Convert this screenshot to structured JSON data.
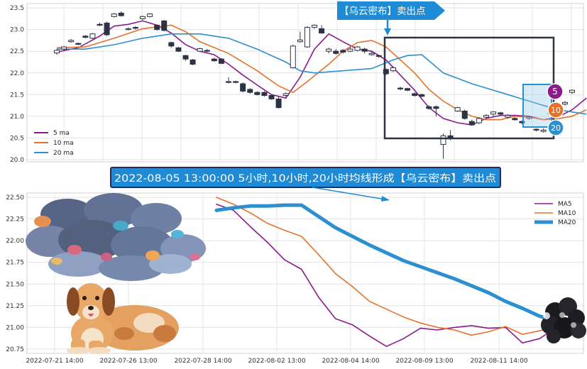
{
  "colors": {
    "ma5": "#8b1a8b",
    "ma10": "#e5722a",
    "ma20": "#2b8fd0",
    "candle": "#2c3344",
    "box": "#2c3344",
    "callout_bg": "#1f8ad6",
    "callout_border": "#1b2f66"
  },
  "callouts": {
    "top": "【乌云密布】卖出点",
    "middle": "2022-08-05 13:00:00 5小时,10小时,20小时均线形成【乌云密布】卖出点"
  },
  "badges": {
    "b5": "5",
    "b10": "10",
    "b20": "20"
  },
  "illustrations": [
    "cloud",
    "dog",
    "dark-cloud"
  ],
  "chart_data": [
    {
      "type": "candlestick",
      "ylim": [
        19.95,
        23.6
      ],
      "yticks": [
        "20.0",
        "20.5",
        "21.0",
        "21.5",
        "22.0",
        "22.5",
        "23.0",
        "23.5"
      ],
      "legend": {
        "position": "bottom-left",
        "entries": [
          "5 ma",
          "10 ma",
          "20 ma"
        ]
      },
      "grid": true,
      "candles": [
        {
          "o": 22.46,
          "c": 22.52,
          "h": 22.55,
          "l": 22.42
        },
        {
          "o": 22.55,
          "c": 22.6,
          "h": 22.62,
          "l": 22.5
        },
        {
          "o": 22.72,
          "c": 22.75,
          "h": 22.78,
          "l": 22.7
        },
        {
          "o": 22.68,
          "c": 22.66,
          "h": 22.7,
          "l": 22.64
        },
        {
          "o": 22.85,
          "c": 22.82,
          "h": 22.87,
          "l": 22.8
        },
        {
          "o": 22.8,
          "c": 22.9,
          "h": 22.92,
          "l": 22.78
        },
        {
          "o": 23.12,
          "c": 23.1,
          "h": 23.16,
          "l": 23.08
        },
        {
          "o": 23.15,
          "c": 22.88,
          "h": 23.18,
          "l": 22.85
        },
        {
          "o": 23.3,
          "c": 23.36,
          "h": 23.38,
          "l": 23.28
        },
        {
          "o": 23.38,
          "c": 23.32,
          "h": 23.42,
          "l": 23.3
        },
        {
          "o": 23.0,
          "c": 23.02,
          "h": 23.05,
          "l": 22.98
        },
        {
          "o": 23.05,
          "c": 23.03,
          "h": 23.08,
          "l": 23.0
        },
        {
          "o": 23.25,
          "c": 23.3,
          "h": 23.32,
          "l": 23.22
        },
        {
          "o": 23.3,
          "c": 23.36,
          "h": 23.38,
          "l": 23.28
        },
        {
          "o": 23.1,
          "c": 23.0,
          "h": 23.12,
          "l": 22.98
        },
        {
          "o": 23.2,
          "c": 22.98,
          "h": 23.22,
          "l": 22.96
        },
        {
          "o": 22.7,
          "c": 22.62,
          "h": 22.72,
          "l": 22.58
        },
        {
          "o": 22.58,
          "c": 22.5,
          "h": 22.6,
          "l": 22.48
        },
        {
          "o": 22.4,
          "c": 22.32,
          "h": 22.42,
          "l": 22.28
        },
        {
          "o": 22.3,
          "c": 22.2,
          "h": 22.32,
          "l": 22.18
        },
        {
          "o": 22.5,
          "c": 22.56,
          "h": 22.58,
          "l": 22.48
        },
        {
          "o": 22.52,
          "c": 22.5,
          "h": 22.55,
          "l": 22.48
        },
        {
          "o": 22.32,
          "c": 22.28,
          "h": 22.35,
          "l": 22.26
        },
        {
          "o": 22.32,
          "c": 22.22,
          "h": 22.34,
          "l": 22.2
        },
        {
          "o": 21.8,
          "c": 21.78,
          "h": 21.9,
          "l": 21.76
        },
        {
          "o": 21.8,
          "c": 21.78,
          "h": 21.82,
          "l": 21.76
        },
        {
          "o": 21.75,
          "c": 21.58,
          "h": 21.78,
          "l": 21.55
        },
        {
          "o": 21.62,
          "c": 21.55,
          "h": 21.65,
          "l": 21.52
        },
        {
          "o": 21.55,
          "c": 21.5,
          "h": 21.58,
          "l": 21.48
        },
        {
          "o": 21.55,
          "c": 21.48,
          "h": 21.58,
          "l": 21.45
        },
        {
          "o": 21.48,
          "c": 21.4,
          "h": 21.5,
          "l": 21.38
        },
        {
          "o": 21.4,
          "c": 21.2,
          "h": 21.45,
          "l": 21.18
        },
        {
          "o": 21.48,
          "c": 21.52,
          "h": 21.55,
          "l": 21.45
        },
        {
          "o": 22.12,
          "c": 22.62,
          "h": 22.65,
          "l": 22.1
        },
        {
          "o": 22.72,
          "c": 22.76,
          "h": 22.95,
          "l": 22.7
        },
        {
          "o": 22.6,
          "c": 23.05,
          "h": 23.08,
          "l": 22.58
        },
        {
          "o": 23.05,
          "c": 23.1,
          "h": 23.12,
          "l": 23.02
        },
        {
          "o": 23.02,
          "c": 22.92,
          "h": 23.1,
          "l": 22.9
        },
        {
          "o": 22.5,
          "c": 22.55,
          "h": 22.58,
          "l": 22.45
        },
        {
          "o": 22.5,
          "c": 22.45,
          "h": 22.55,
          "l": 22.42
        },
        {
          "o": 22.52,
          "c": 22.48,
          "h": 22.55,
          "l": 22.45
        },
        {
          "o": 22.5,
          "c": 22.55,
          "h": 22.6,
          "l": 22.48
        },
        {
          "o": 22.52,
          "c": 22.6,
          "h": 22.62,
          "l": 22.5
        },
        {
          "o": 22.55,
          "c": 22.5,
          "h": 22.58,
          "l": 22.45
        },
        {
          "o": 22.42,
          "c": 22.45,
          "h": 22.5,
          "l": 22.4
        },
        {
          "o": 22.4,
          "c": 22.38,
          "h": 22.42,
          "l": 22.35
        },
        {
          "o": 22.08,
          "c": 21.98,
          "h": 22.1,
          "l": 21.95
        },
        {
          "o": 22.05,
          "c": 22.12,
          "h": 22.15,
          "l": 22.02
        },
        {
          "o": 21.65,
          "c": 21.63,
          "h": 21.68,
          "l": 21.6
        },
        {
          "o": 21.64,
          "c": 21.6,
          "h": 21.66,
          "l": 21.58
        },
        {
          "o": 21.52,
          "c": 21.48,
          "h": 21.55,
          "l": 21.45
        },
        {
          "o": 21.5,
          "c": 21.46,
          "h": 21.52,
          "l": 21.44
        },
        {
          "o": 21.22,
          "c": 21.18,
          "h": 21.25,
          "l": 21.15
        },
        {
          "o": 21.22,
          "c": 21.18,
          "h": 21.25,
          "l": 21.0
        },
        {
          "o": 20.35,
          "c": 20.55,
          "h": 20.6,
          "l": 20.02
        },
        {
          "o": 20.55,
          "c": 20.48,
          "h": 20.68,
          "l": 20.45
        },
        {
          "o": 21.12,
          "c": 21.2,
          "h": 21.22,
          "l": 21.1
        },
        {
          "o": 21.12,
          "c": 20.95,
          "h": 21.15,
          "l": 20.92
        },
        {
          "o": 20.88,
          "c": 20.8,
          "h": 20.92,
          "l": 20.78
        },
        {
          "o": 20.85,
          "c": 20.95,
          "h": 20.98,
          "l": 20.82
        },
        {
          "o": 20.98,
          "c": 21.02,
          "h": 21.05,
          "l": 20.95
        },
        {
          "o": 21.05,
          "c": 21.1,
          "h": 21.12,
          "l": 21.0
        },
        {
          "o": 21.08,
          "c": 21.05,
          "h": 21.1,
          "l": 21.02
        },
        {
          "o": 20.98,
          "c": 21.02,
          "h": 21.05,
          "l": 20.95
        },
        {
          "o": 20.95,
          "c": 20.92,
          "h": 20.98,
          "l": 20.9
        },
        {
          "o": 20.88,
          "c": 20.85,
          "h": 20.9,
          "l": 20.82
        },
        {
          "o": 20.95,
          "c": 20.98,
          "h": 21.0,
          "l": 20.92
        },
        {
          "o": 20.7,
          "c": 20.68,
          "h": 20.72,
          "l": 20.65
        },
        {
          "o": 20.65,
          "c": 20.68,
          "h": 20.72,
          "l": 20.62
        },
        {
          "o": 21.05,
          "c": 21.08,
          "h": 21.1,
          "l": 21.02
        },
        {
          "o": 21.15,
          "c": 21.22,
          "h": 21.25,
          "l": 21.12
        },
        {
          "o": 21.28,
          "c": 21.32,
          "h": 21.35,
          "l": 21.25
        },
        {
          "o": 21.55,
          "c": 21.6,
          "h": 21.62,
          "l": 21.52
        }
      ],
      "series": [
        {
          "name": "5 ma",
          "points": [
            [
              0,
              22.48
            ],
            [
              3,
              22.58
            ],
            [
              6,
              22.85
            ],
            [
              8,
              23.08
            ],
            [
              10,
              23.12
            ],
            [
              12,
              23.2
            ],
            [
              14,
              23.1
            ],
            [
              16,
              22.92
            ],
            [
              18,
              22.65
            ],
            [
              20,
              22.5
            ],
            [
              22,
              22.42
            ],
            [
              24,
              22.2
            ],
            [
              26,
              21.95
            ],
            [
              28,
              21.72
            ],
            [
              30,
              21.5
            ],
            [
              32,
              21.42
            ],
            [
              34,
              21.9
            ],
            [
              36,
              22.55
            ],
            [
              38,
              22.9
            ],
            [
              40,
              22.72
            ],
            [
              42,
              22.55
            ],
            [
              44,
              22.5
            ],
            [
              46,
              22.3
            ],
            [
              48,
              21.95
            ],
            [
              50,
              21.6
            ],
            [
              52,
              21.2
            ],
            [
              54,
              20.95
            ],
            [
              56,
              20.85
            ],
            [
              58,
              20.8
            ],
            [
              60,
              20.95
            ],
            [
              62,
              21.02
            ],
            [
              64,
              21.02
            ],
            [
              66,
              21.0
            ],
            [
              68,
              20.92
            ],
            [
              70,
              20.98
            ],
            [
              72,
              21.15
            ],
            [
              74,
              21.42
            ]
          ]
        },
        {
          "name": "10 ma",
          "points": [
            [
              0,
              22.58
            ],
            [
              4,
              22.6
            ],
            [
              8,
              22.8
            ],
            [
              12,
              23.02
            ],
            [
              16,
              23.1
            ],
            [
              18,
              22.95
            ],
            [
              20,
              22.72
            ],
            [
              24,
              22.45
            ],
            [
              28,
              22.05
            ],
            [
              31,
              21.7
            ],
            [
              33,
              21.55
            ],
            [
              35,
              21.8
            ],
            [
              38,
              22.2
            ],
            [
              40,
              22.5
            ],
            [
              42,
              22.7
            ],
            [
              44,
              22.75
            ],
            [
              46,
              22.6
            ],
            [
              48,
              22.3
            ],
            [
              50,
              22.0
            ],
            [
              52,
              21.62
            ],
            [
              54,
              21.35
            ],
            [
              56,
              21.15
            ],
            [
              58,
              21.0
            ],
            [
              60,
              20.92
            ],
            [
              62,
              20.92
            ],
            [
              64,
              21.0
            ],
            [
              66,
              20.98
            ],
            [
              68,
              20.92
            ],
            [
              70,
              20.94
            ],
            [
              72,
              21.0
            ],
            [
              74,
              21.15
            ]
          ]
        },
        {
          "name": "20 ma",
          "points": [
            [
              0,
              22.55
            ],
            [
              4,
              22.55
            ],
            [
              8,
              22.65
            ],
            [
              12,
              22.8
            ],
            [
              16,
              22.9
            ],
            [
              20,
              22.9
            ],
            [
              24,
              22.8
            ],
            [
              28,
              22.55
            ],
            [
              32,
              22.25
            ],
            [
              34,
              22.05
            ],
            [
              36,
              22.0
            ],
            [
              40,
              22.05
            ],
            [
              44,
              22.1
            ],
            [
              47,
              22.3
            ],
            [
              49,
              22.4
            ],
            [
              51,
              22.42
            ],
            [
              54,
              22.0
            ],
            [
              58,
              21.75
            ],
            [
              62,
              21.55
            ],
            [
              66,
              21.35
            ],
            [
              70,
              21.15
            ],
            [
              74,
              21.05
            ]
          ]
        }
      ]
    },
    {
      "type": "line",
      "ylim": [
        20.7,
        22.55
      ],
      "yticks": [
        "20.75",
        "21.00",
        "21.25",
        "21.50",
        "21.75",
        "22.00",
        "22.25",
        "22.50"
      ],
      "xticks": [
        "2022-07-21 14:00",
        "2022-07-26 13:00",
        "2022-07-28 14:00",
        "2022-08-02 13:00",
        "2022-08-04 14:00",
        "2022-08-09 13:00",
        "2022-08-11 14:00"
      ],
      "legend": {
        "position": "top-right",
        "entries": [
          "MA5",
          "MA10",
          "MA20"
        ]
      },
      "grid": true,
      "series": [
        {
          "name": "MA5",
          "values": [
            22.42,
            22.35,
            22.16,
            21.98,
            21.78,
            21.67,
            21.35,
            21.1,
            21.03,
            20.9,
            20.78,
            20.87,
            20.99,
            20.97,
            21.0,
            21.02,
            20.99,
            21.0,
            20.82,
            20.87,
            21.0,
            21.05
          ]
        },
        {
          "name": "MA10",
          "values": [
            22.5,
            22.42,
            22.32,
            22.2,
            22.12,
            22.05,
            21.84,
            21.62,
            21.47,
            21.3,
            21.21,
            21.12,
            21.05,
            21.0,
            20.97,
            20.91,
            20.95,
            21.01,
            20.92,
            20.96,
            21.01,
            21.04
          ]
        },
        {
          "name": "MA20",
          "values": [
            22.35,
            22.38,
            22.4,
            22.4,
            22.41,
            22.41,
            22.28,
            22.15,
            22.05,
            21.95,
            21.86,
            21.77,
            21.7,
            21.63,
            21.56,
            21.48,
            21.4,
            21.3,
            21.22,
            21.13,
            21.08,
            21.05
          ]
        }
      ]
    }
  ]
}
